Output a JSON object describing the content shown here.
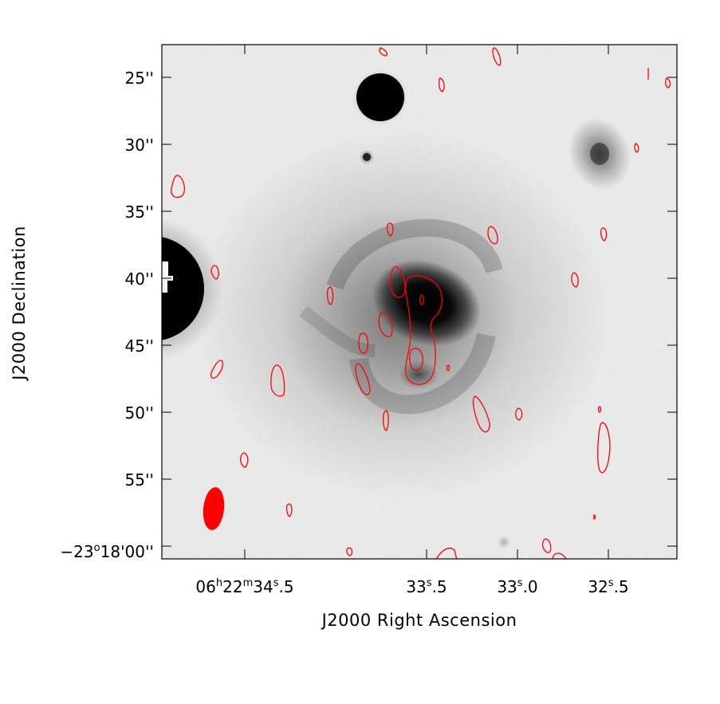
{
  "axes": {
    "x_label": "J2000 Right Ascension",
    "y_label": "J2000 Declination",
    "x_ticks": [
      {
        "h": "06",
        "m": "22",
        "s": "34",
        "frac": ".5"
      },
      {
        "s": "33",
        "frac": ".5"
      },
      {
        "s": "33",
        "frac": ".0"
      },
      {
        "s": "32",
        "frac": ".5"
      }
    ],
    "y_ticks": [
      {
        "label": "25''"
      },
      {
        "label": "30''"
      },
      {
        "label": "35''"
      },
      {
        "label": "40''"
      },
      {
        "label": "45''"
      },
      {
        "label": "50''"
      },
      {
        "label": "55''"
      },
      {
        "deg": "−23",
        "min": "18",
        "sec": "00''"
      }
    ]
  },
  "colors": {
    "contour": "#ff0000",
    "beam": "#ff0000",
    "frame": "#000000"
  }
}
